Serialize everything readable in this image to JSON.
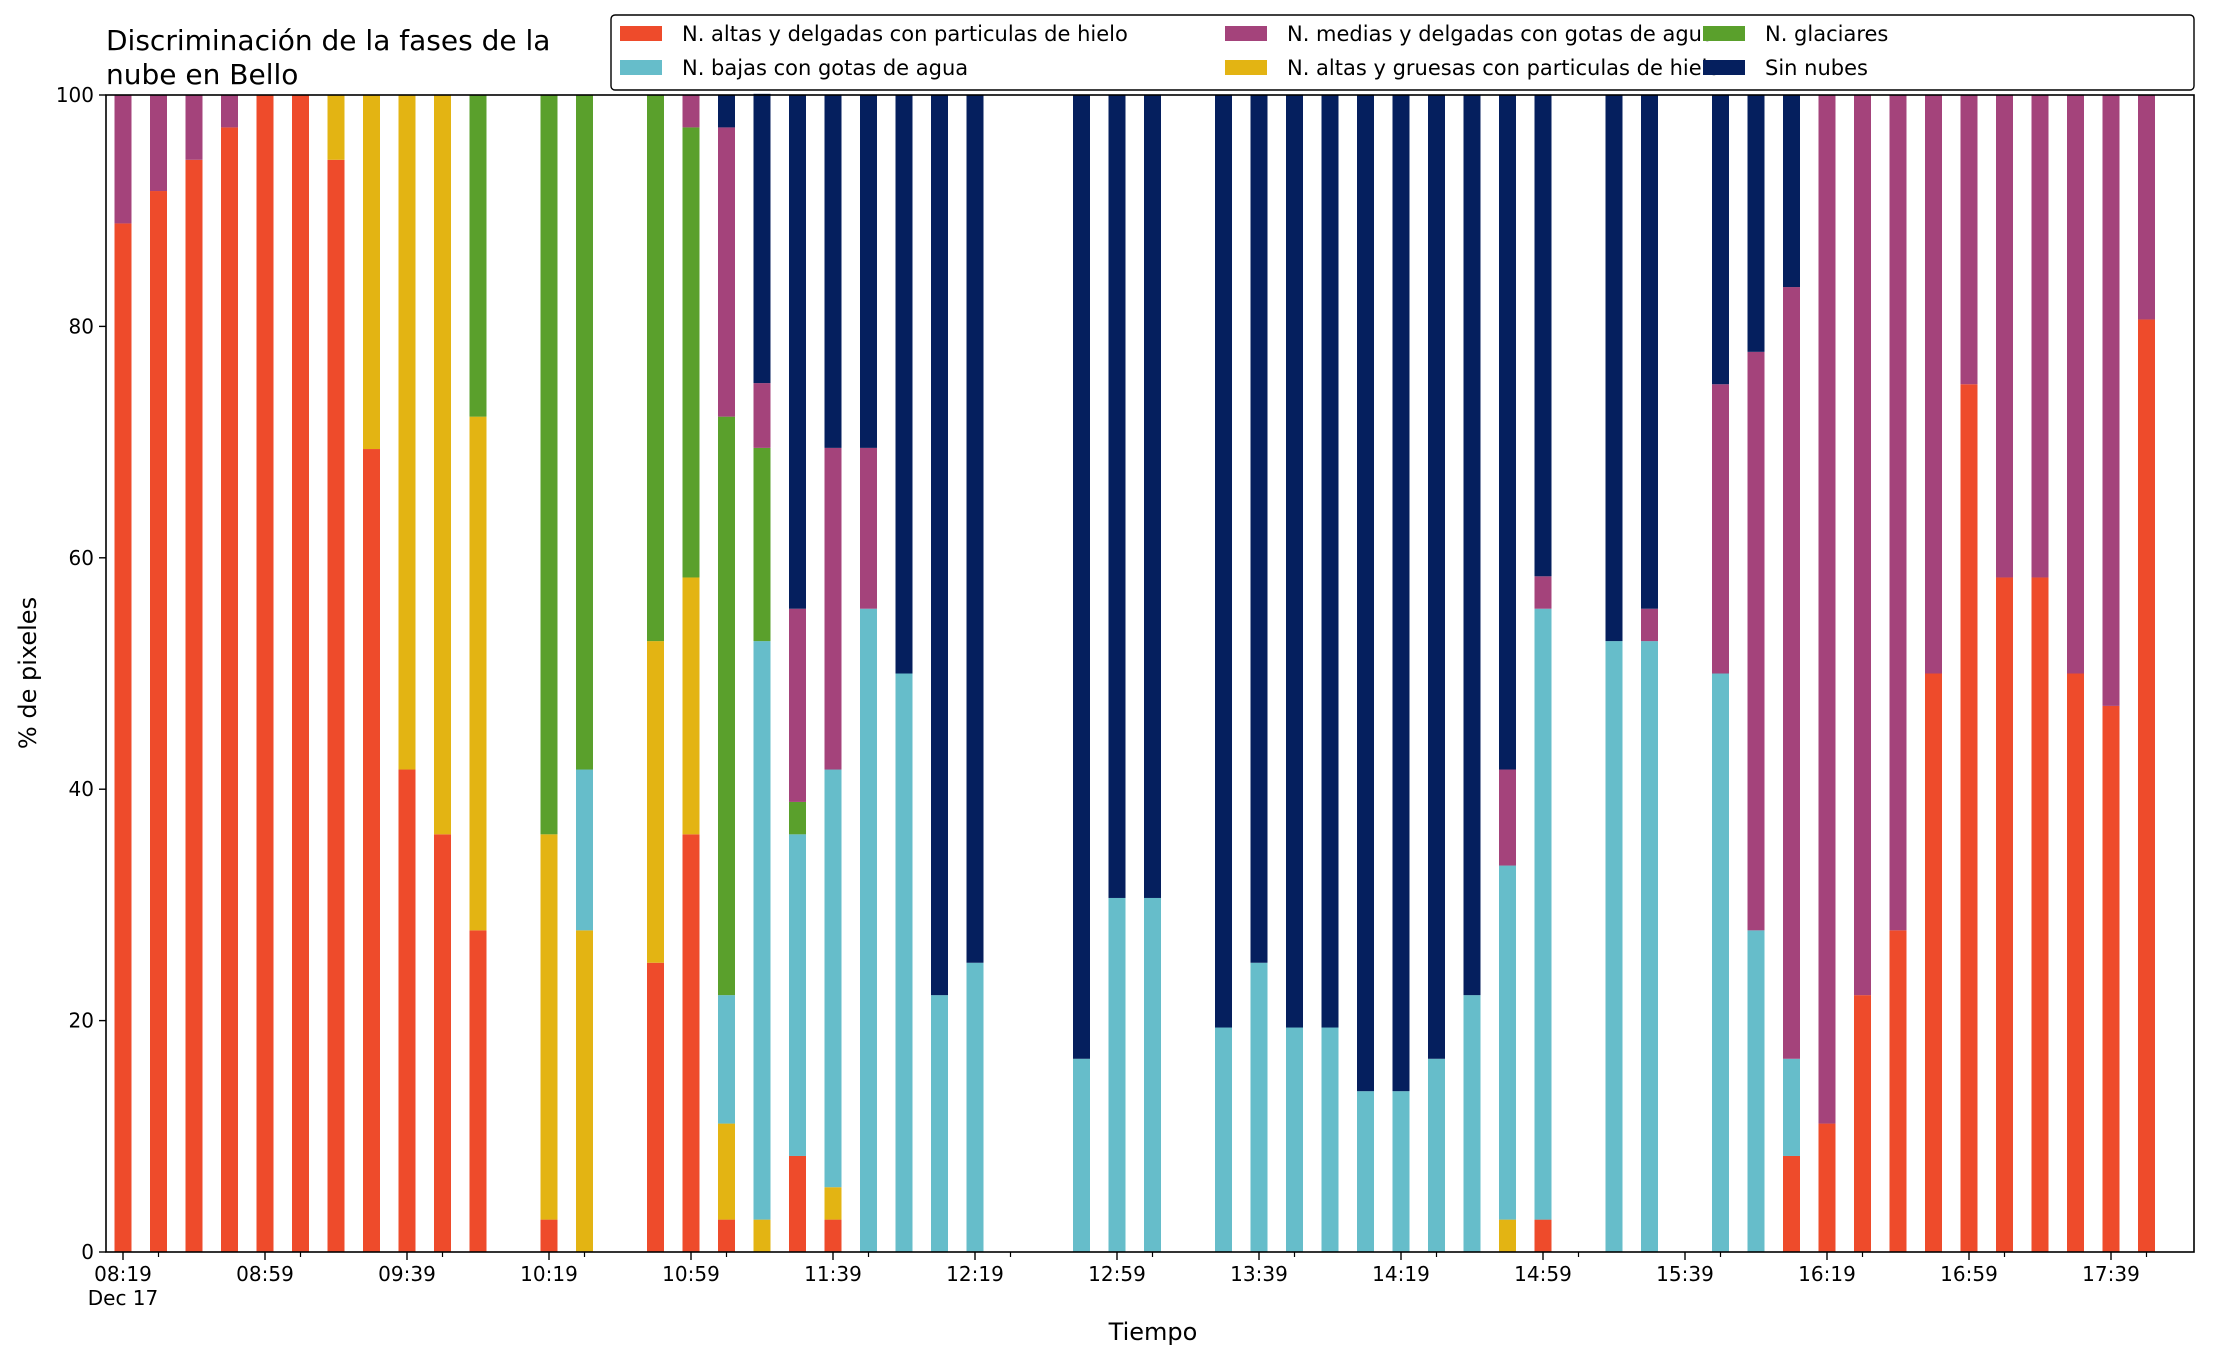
{
  "chart_data": {
    "type": "bar",
    "stacked": true,
    "title_lines": [
      "Discriminación de la fases de la",
      "nube en Bello"
    ],
    "xlabel": "Tiempo",
    "ylabel": "% de pixeles",
    "ylim": [
      0,
      100
    ],
    "yticks": [
      0,
      20,
      40,
      60,
      80,
      100
    ],
    "x_unit_minutes": 10,
    "x_start": "08:19",
    "x_end": "17:49",
    "x_ticks_minor_start": "08:29",
    "x_ticks_minor_every_minutes": 40,
    "x_tick_labels": [
      {
        "time": "08:19",
        "label": "08:19",
        "sublabel": "Dec 17"
      },
      {
        "time": "08:59",
        "label": "08:59"
      },
      {
        "time": "09:39",
        "label": "09:39"
      },
      {
        "time": "10:19",
        "label": "10:19"
      },
      {
        "time": "10:59",
        "label": "10:59"
      },
      {
        "time": "11:39",
        "label": "11:39"
      },
      {
        "time": "12:19",
        "label": "12:19"
      },
      {
        "time": "12:59",
        "label": "12:59"
      },
      {
        "time": "13:39",
        "label": "13:39"
      },
      {
        "time": "14:19",
        "label": "14:19"
      },
      {
        "time": "14:59",
        "label": "14:59"
      },
      {
        "time": "15:39",
        "label": "15:39"
      },
      {
        "time": "16:19",
        "label": "16:19"
      },
      {
        "time": "16:59",
        "label": "16:59"
      },
      {
        "time": "17:39",
        "label": "17:39"
      }
    ],
    "legend_position": "top-right",
    "series": [
      {
        "key": "altas_delgadas",
        "name": "N. altas y delgadas con particulas de hielo",
        "color": "#ee4b2b"
      },
      {
        "key": "altas_gruesas",
        "name": "N. altas y gruesas con particulas de hielo",
        "color": "#e3b413"
      },
      {
        "key": "bajas_agua",
        "name": "N. bajas con gotas de agua",
        "color": "#66bdca"
      },
      {
        "key": "glaciares",
        "name": "N. glaciares",
        "color": "#5aa02c"
      },
      {
        "key": "medias_agua",
        "name": "N. medias y delgadas con gotas de agua",
        "color": "#a4437b"
      },
      {
        "key": "sin_nubes",
        "name": "Sin nubes",
        "color": "#051f5e"
      }
    ],
    "legend_order": [
      "altas_delgadas",
      "bajas_agua",
      "medias_agua",
      "altas_gruesas",
      "glaciares",
      "sin_nubes"
    ],
    "stack_order": [
      "altas_delgadas",
      "altas_gruesas",
      "bajas_agua",
      "glaciares",
      "medias_agua",
      "sin_nubes"
    ],
    "bars": [
      {
        "time": "08:19",
        "altas_delgadas": 88.9,
        "medias_agua": 11.1
      },
      {
        "time": "08:29",
        "altas_delgadas": 91.7,
        "medias_agua": 8.3
      },
      {
        "time": "08:39",
        "altas_delgadas": 94.4,
        "medias_agua": 5.6
      },
      {
        "time": "08:49",
        "altas_delgadas": 97.2,
        "medias_agua": 2.8
      },
      {
        "time": "08:59",
        "altas_delgadas": 100
      },
      {
        "time": "09:09",
        "altas_delgadas": 100
      },
      {
        "time": "09:19",
        "altas_delgadas": 94.4,
        "altas_gruesas": 5.6
      },
      {
        "time": "09:29",
        "altas_delgadas": 69.4,
        "altas_gruesas": 30.6
      },
      {
        "time": "09:39",
        "altas_delgadas": 41.7,
        "altas_gruesas": 58.3
      },
      {
        "time": "09:49",
        "altas_delgadas": 36.1,
        "altas_gruesas": 63.9
      },
      {
        "time": "09:59",
        "altas_delgadas": 27.8,
        "altas_gruesas": 44.4,
        "glaciares": 27.8
      },
      {
        "time": "10:19",
        "altas_delgadas": 2.8,
        "altas_gruesas": 33.3,
        "glaciares": 63.9
      },
      {
        "time": "10:29",
        "altas_gruesas": 27.8,
        "bajas_agua": 13.9,
        "glaciares": 58.3
      },
      {
        "time": "10:49",
        "altas_delgadas": 25.0,
        "altas_gruesas": 27.8,
        "glaciares": 47.2
      },
      {
        "time": "10:59",
        "altas_delgadas": 36.1,
        "altas_gruesas": 22.2,
        "glaciares": 38.9,
        "medias_agua": 2.8
      },
      {
        "time": "11:09",
        "altas_delgadas": 2.8,
        "altas_gruesas": 8.3,
        "bajas_agua": 11.1,
        "glaciares": 50.0,
        "medias_agua": 25.0,
        "sin_nubes": 2.8
      },
      {
        "time": "11:19",
        "altas_gruesas": 2.8,
        "bajas_agua": 50.0,
        "glaciares": 16.7,
        "medias_agua": 5.6,
        "sin_nubes": 25.0
      },
      {
        "time": "11:29",
        "altas_delgadas": 8.3,
        "bajas_agua": 27.8,
        "glaciares": 2.8,
        "medias_agua": 16.7,
        "sin_nubes": 44.4
      },
      {
        "time": "11:39",
        "altas_delgadas": 2.8,
        "altas_gruesas": 2.8,
        "bajas_agua": 36.1,
        "medias_agua": 27.8,
        "sin_nubes": 30.5
      },
      {
        "time": "11:49",
        "bajas_agua": 55.6,
        "medias_agua": 13.9,
        "sin_nubes": 30.5
      },
      {
        "time": "11:59",
        "bajas_agua": 50.0,
        "sin_nubes": 50.0
      },
      {
        "time": "12:09",
        "bajas_agua": 22.2,
        "sin_nubes": 77.8
      },
      {
        "time": "12:19",
        "bajas_agua": 25.0,
        "sin_nubes": 75.0
      },
      {
        "time": "12:49",
        "bajas_agua": 16.7,
        "sin_nubes": 83.3
      },
      {
        "time": "12:59",
        "bajas_agua": 30.6,
        "sin_nubes": 69.4
      },
      {
        "time": "13:09",
        "bajas_agua": 30.6,
        "sin_nubes": 69.4
      },
      {
        "time": "13:29",
        "bajas_agua": 19.4,
        "sin_nubes": 80.6
      },
      {
        "time": "13:39",
        "bajas_agua": 25.0,
        "sin_nubes": 75.0
      },
      {
        "time": "13:49",
        "bajas_agua": 19.4,
        "sin_nubes": 80.6
      },
      {
        "time": "13:59",
        "bajas_agua": 19.4,
        "sin_nubes": 80.6
      },
      {
        "time": "14:09",
        "bajas_agua": 13.9,
        "sin_nubes": 86.1
      },
      {
        "time": "14:19",
        "bajas_agua": 13.9,
        "sin_nubes": 86.1
      },
      {
        "time": "14:29",
        "bajas_agua": 16.7,
        "sin_nubes": 83.3
      },
      {
        "time": "14:39",
        "bajas_agua": 22.2,
        "sin_nubes": 77.8
      },
      {
        "time": "14:49",
        "altas_gruesas": 2.8,
        "bajas_agua": 30.6,
        "medias_agua": 8.3,
        "sin_nubes": 58.3
      },
      {
        "time": "14:59",
        "altas_delgadas": 2.8,
        "bajas_agua": 52.8,
        "medias_agua": 2.8,
        "sin_nubes": 41.6
      },
      {
        "time": "15:19",
        "bajas_agua": 52.8,
        "sin_nubes": 47.2
      },
      {
        "time": "15:29",
        "bajas_agua": 52.8,
        "medias_agua": 2.8,
        "sin_nubes": 44.4
      },
      {
        "time": "15:49",
        "bajas_agua": 50.0,
        "medias_agua": 25.0,
        "sin_nubes": 25.0
      },
      {
        "time": "15:59",
        "bajas_agua": 27.8,
        "medias_agua": 50.0,
        "sin_nubes": 22.2
      },
      {
        "time": "16:09",
        "altas_delgadas": 8.3,
        "bajas_agua": 8.4,
        "medias_agua": 66.7,
        "sin_nubes": 16.6
      },
      {
        "time": "16:19",
        "altas_delgadas": 11.1,
        "medias_agua": 88.9
      },
      {
        "time": "16:29",
        "altas_delgadas": 22.2,
        "medias_agua": 77.8
      },
      {
        "time": "16:39",
        "altas_delgadas": 27.8,
        "medias_agua": 72.2
      },
      {
        "time": "16:49",
        "altas_delgadas": 50.0,
        "medias_agua": 50.0
      },
      {
        "time": "16:59",
        "altas_delgadas": 75.0,
        "medias_agua": 25.0
      },
      {
        "time": "17:09",
        "altas_delgadas": 58.3,
        "medias_agua": 41.7
      },
      {
        "time": "17:19",
        "altas_delgadas": 58.3,
        "medias_agua": 41.7
      },
      {
        "time": "17:29",
        "altas_delgadas": 50.0,
        "medias_agua": 50.0
      },
      {
        "time": "17:39",
        "altas_delgadas": 47.2,
        "medias_agua": 52.8
      },
      {
        "time": "17:49",
        "altas_delgadas": 80.6,
        "medias_agua": 19.4
      }
    ]
  }
}
